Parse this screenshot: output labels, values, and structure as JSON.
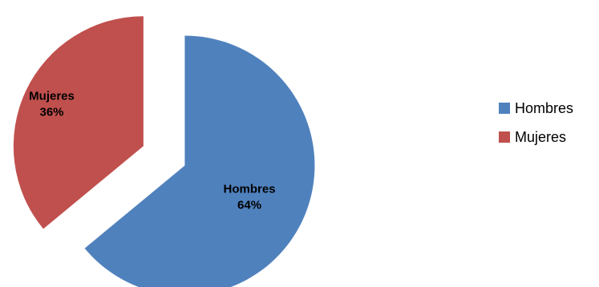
{
  "chart_data": {
    "type": "pie",
    "title": "",
    "categories": [
      "Hombres",
      "Mujeres"
    ],
    "values": [
      64,
      36
    ],
    "value_labels": [
      "64%",
      "36%"
    ],
    "colors": [
      "#4F81BD",
      "#C0504D"
    ],
    "exploded": true,
    "legend": "right",
    "legend_entries": [
      {
        "label": "Hombres",
        "color": "#4F81BD"
      },
      {
        "label": "Mujeres",
        "color": "#C0504D"
      }
    ]
  }
}
